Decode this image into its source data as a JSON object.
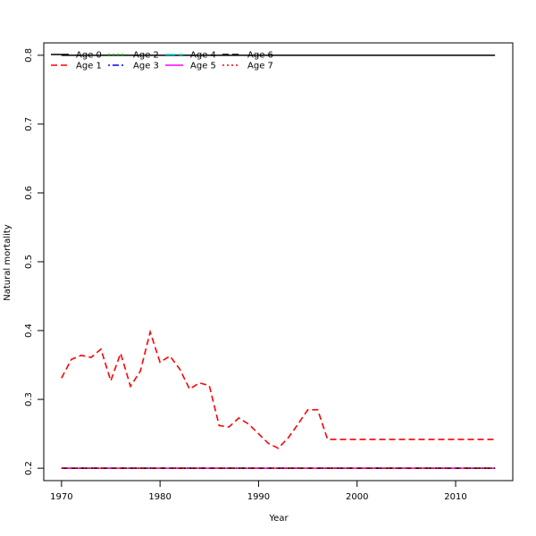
{
  "chart_data": {
    "type": "line",
    "title": "",
    "xlabel": "Year",
    "ylabel": "Natural mortality",
    "xlim": [
      1968.2,
      2015.8
    ],
    "ylim": [
      0.182,
      0.818
    ],
    "x_ticks": [
      1970,
      1980,
      1990,
      2000,
      2010
    ],
    "y_ticks": [
      0.2,
      0.3,
      0.4,
      0.5,
      0.6,
      0.7,
      0.8
    ],
    "grid": false,
    "legend_position": "top-left",
    "x": [
      1970,
      1971,
      1972,
      1973,
      1974,
      1975,
      1976,
      1977,
      1978,
      1979,
      1980,
      1981,
      1982,
      1983,
      1984,
      1985,
      1986,
      1987,
      1988,
      1989,
      1990,
      1991,
      1992,
      1993,
      1994,
      1995,
      1996,
      1997,
      1998,
      1999,
      2000,
      2001,
      2002,
      2003,
      2004,
      2005,
      2006,
      2007,
      2008,
      2009,
      2010,
      2011,
      2012,
      2013,
      2014
    ],
    "series": [
      {
        "name": "Age 0",
        "color": "#000000",
        "dash": "solid",
        "values": [
          0.8,
          0.8,
          0.8,
          0.8,
          0.8,
          0.8,
          0.8,
          0.8,
          0.8,
          0.8,
          0.8,
          0.8,
          0.8,
          0.8,
          0.8,
          0.8,
          0.8,
          0.8,
          0.8,
          0.8,
          0.8,
          0.8,
          0.8,
          0.8,
          0.8,
          0.8,
          0.8,
          0.8,
          0.8,
          0.8,
          0.8,
          0.8,
          0.8,
          0.8,
          0.8,
          0.8,
          0.8,
          0.8,
          0.8,
          0.8,
          0.8,
          0.8,
          0.8,
          0.8,
          0.8
        ]
      },
      {
        "name": "Age 1",
        "color": "#ff0000",
        "dash": "dashed",
        "values": [
          0.331,
          0.358,
          0.364,
          0.361,
          0.373,
          0.327,
          0.367,
          0.319,
          0.341,
          0.398,
          0.354,
          0.363,
          0.344,
          0.315,
          0.324,
          0.32,
          0.262,
          0.26,
          0.273,
          0.264,
          0.25,
          0.236,
          0.229,
          0.244,
          0.264,
          0.285,
          0.285,
          0.242,
          0.242,
          0.242,
          0.242,
          0.242,
          0.242,
          0.242,
          0.242,
          0.242,
          0.242,
          0.242,
          0.242,
          0.242,
          0.242,
          0.242,
          0.242,
          0.242,
          0.242
        ]
      },
      {
        "name": "Age 2",
        "color": "#00cd00",
        "dash": "dotted",
        "values": [
          0.2,
          0.2,
          0.2,
          0.2,
          0.2,
          0.2,
          0.2,
          0.2,
          0.2,
          0.2,
          0.2,
          0.2,
          0.2,
          0.2,
          0.2,
          0.2,
          0.2,
          0.2,
          0.2,
          0.2,
          0.2,
          0.2,
          0.2,
          0.2,
          0.2,
          0.2,
          0.2,
          0.2,
          0.2,
          0.2,
          0.2,
          0.2,
          0.2,
          0.2,
          0.2,
          0.2,
          0.2,
          0.2,
          0.2,
          0.2,
          0.2,
          0.2,
          0.2,
          0.2,
          0.2
        ]
      },
      {
        "name": "Age 3",
        "color": "#0000ff",
        "dash": "dotdash",
        "values": [
          0.2,
          0.2,
          0.2,
          0.2,
          0.2,
          0.2,
          0.2,
          0.2,
          0.2,
          0.2,
          0.2,
          0.2,
          0.2,
          0.2,
          0.2,
          0.2,
          0.2,
          0.2,
          0.2,
          0.2,
          0.2,
          0.2,
          0.2,
          0.2,
          0.2,
          0.2,
          0.2,
          0.2,
          0.2,
          0.2,
          0.2,
          0.2,
          0.2,
          0.2,
          0.2,
          0.2,
          0.2,
          0.2,
          0.2,
          0.2,
          0.2,
          0.2,
          0.2,
          0.2,
          0.2
        ]
      },
      {
        "name": "Age 4",
        "color": "#00e5e5",
        "dash": "longdash",
        "values": [
          0.2,
          0.2,
          0.2,
          0.2,
          0.2,
          0.2,
          0.2,
          0.2,
          0.2,
          0.2,
          0.2,
          0.2,
          0.2,
          0.2,
          0.2,
          0.2,
          0.2,
          0.2,
          0.2,
          0.2,
          0.2,
          0.2,
          0.2,
          0.2,
          0.2,
          0.2,
          0.2,
          0.2,
          0.2,
          0.2,
          0.2,
          0.2,
          0.2,
          0.2,
          0.2,
          0.2,
          0.2,
          0.2,
          0.2,
          0.2,
          0.2,
          0.2,
          0.2,
          0.2,
          0.2
        ]
      },
      {
        "name": "Age 5",
        "color": "#ff00ff",
        "dash": "solid",
        "values": [
          0.2,
          0.2,
          0.2,
          0.2,
          0.2,
          0.2,
          0.2,
          0.2,
          0.2,
          0.2,
          0.2,
          0.2,
          0.2,
          0.2,
          0.2,
          0.2,
          0.2,
          0.2,
          0.2,
          0.2,
          0.2,
          0.2,
          0.2,
          0.2,
          0.2,
          0.2,
          0.2,
          0.2,
          0.2,
          0.2,
          0.2,
          0.2,
          0.2,
          0.2,
          0.2,
          0.2,
          0.2,
          0.2,
          0.2,
          0.2,
          0.2,
          0.2,
          0.2,
          0.2,
          0.2
        ]
      },
      {
        "name": "Age 6",
        "color": "#000000",
        "dash": "dashed",
        "values": [
          0.2,
          0.2,
          0.2,
          0.2,
          0.2,
          0.2,
          0.2,
          0.2,
          0.2,
          0.2,
          0.2,
          0.2,
          0.2,
          0.2,
          0.2,
          0.2,
          0.2,
          0.2,
          0.2,
          0.2,
          0.2,
          0.2,
          0.2,
          0.2,
          0.2,
          0.2,
          0.2,
          0.2,
          0.2,
          0.2,
          0.2,
          0.2,
          0.2,
          0.2,
          0.2,
          0.2,
          0.2,
          0.2,
          0.2,
          0.2,
          0.2,
          0.2,
          0.2,
          0.2,
          0.2
        ]
      },
      {
        "name": "Age 7",
        "color": "#ff0000",
        "dash": "dotted",
        "values": [
          0.2,
          0.2,
          0.2,
          0.2,
          0.2,
          0.2,
          0.2,
          0.2,
          0.2,
          0.2,
          0.2,
          0.2,
          0.2,
          0.2,
          0.2,
          0.2,
          0.2,
          0.2,
          0.2,
          0.2,
          0.2,
          0.2,
          0.2,
          0.2,
          0.2,
          0.2,
          0.2,
          0.2,
          0.2,
          0.2,
          0.2,
          0.2,
          0.2,
          0.2,
          0.2,
          0.2,
          0.2,
          0.2,
          0.2,
          0.2,
          0.2,
          0.2,
          0.2,
          0.2,
          0.2
        ]
      }
    ]
  }
}
